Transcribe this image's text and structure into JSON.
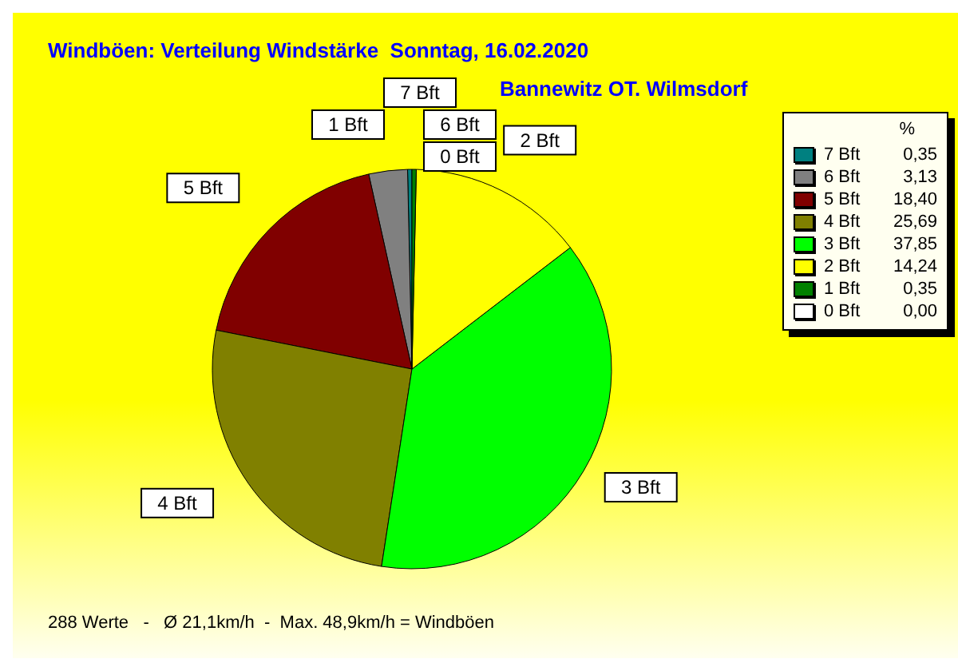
{
  "chart_data": {
    "type": "pie",
    "title": "Windböen: Verteilung Windstärke  Sonntag, 16.02.2020",
    "subtitle": "Bannewitz OT. Wilmsdorf",
    "legend_title": "%",
    "legend": "right",
    "categories": [
      "7 Bft",
      "6 Bft",
      "5 Bft",
      "4 Bft",
      "3 Bft",
      "2 Bft",
      "1 Bft",
      "0 Bft"
    ],
    "values": [
      0.35,
      3.13,
      18.4,
      25.69,
      37.85,
      14.24,
      0.35,
      0.0
    ],
    "value_labels": [
      "0,35",
      "3,13",
      "18,40",
      "25,69",
      "37,85",
      "14,24",
      "0,35",
      "0,00"
    ],
    "colors": [
      "#008080",
      "#808080",
      "#800000",
      "#808000",
      "#00ff00",
      "#ffff00",
      "#008000",
      "#ffffff"
    ],
    "annotations": [
      "288 Werte   -   Ø 21,1km/h  -  Max. 48,9km/h = Windböen"
    ]
  }
}
